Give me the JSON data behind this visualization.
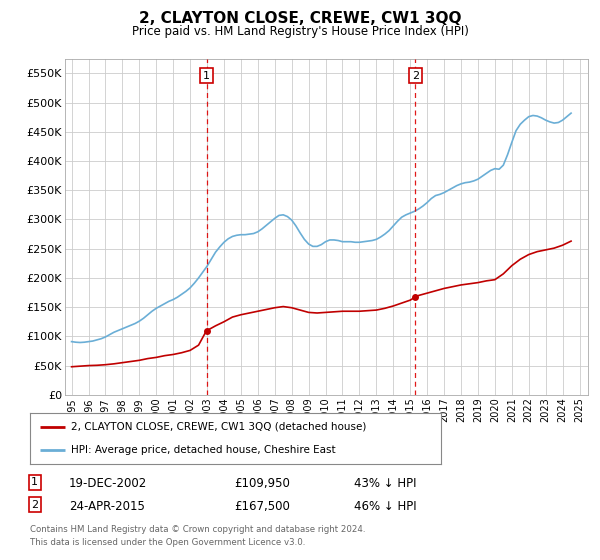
{
  "title": "2, CLAYTON CLOSE, CREWE, CW1 3QQ",
  "subtitle": "Price paid vs. HM Land Registry's House Price Index (HPI)",
  "ytick_values": [
    0,
    50000,
    100000,
    150000,
    200000,
    250000,
    300000,
    350000,
    400000,
    450000,
    500000,
    550000
  ],
  "ylim": [
    0,
    575000
  ],
  "xlim_start": 1994.6,
  "xlim_end": 2025.5,
  "hpi_color": "#6aaed6",
  "price_color": "#c00000",
  "transaction1_date": 2002.97,
  "transaction1_price": 109950,
  "transaction2_date": 2015.31,
  "transaction2_price": 167500,
  "marker_vline_color": "#dd0000",
  "marker_box_color": "#cc0000",
  "legend_label_red": "2, CLAYTON CLOSE, CREWE, CW1 3QQ (detached house)",
  "legend_label_blue": "HPI: Average price, detached house, Cheshire East",
  "transaction1_label": "19-DEC-2002",
  "transaction1_amount": "£109,950",
  "transaction1_pct": "43% ↓ HPI",
  "transaction2_label": "24-APR-2015",
  "transaction2_amount": "£167,500",
  "transaction2_pct": "46% ↓ HPI",
  "footer1": "Contains HM Land Registry data © Crown copyright and database right 2024.",
  "footer2": "This data is licensed under the Open Government Licence v3.0.",
  "background_color": "#ffffff",
  "grid_color": "#cccccc",
  "hpi_data_x": [
    1995.0,
    1995.25,
    1995.5,
    1995.75,
    1996.0,
    1996.25,
    1996.5,
    1996.75,
    1997.0,
    1997.25,
    1997.5,
    1997.75,
    1998.0,
    1998.25,
    1998.5,
    1998.75,
    1999.0,
    1999.25,
    1999.5,
    1999.75,
    2000.0,
    2000.25,
    2000.5,
    2000.75,
    2001.0,
    2001.25,
    2001.5,
    2001.75,
    2002.0,
    2002.25,
    2002.5,
    2002.75,
    2003.0,
    2003.25,
    2003.5,
    2003.75,
    2004.0,
    2004.25,
    2004.5,
    2004.75,
    2005.0,
    2005.25,
    2005.5,
    2005.75,
    2006.0,
    2006.25,
    2006.5,
    2006.75,
    2007.0,
    2007.25,
    2007.5,
    2007.75,
    2008.0,
    2008.25,
    2008.5,
    2008.75,
    2009.0,
    2009.25,
    2009.5,
    2009.75,
    2010.0,
    2010.25,
    2010.5,
    2010.75,
    2011.0,
    2011.25,
    2011.5,
    2011.75,
    2012.0,
    2012.25,
    2012.5,
    2012.75,
    2013.0,
    2013.25,
    2013.5,
    2013.75,
    2014.0,
    2014.25,
    2014.5,
    2014.75,
    2015.0,
    2015.25,
    2015.5,
    2015.75,
    2016.0,
    2016.25,
    2016.5,
    2016.75,
    2017.0,
    2017.25,
    2017.5,
    2017.75,
    2018.0,
    2018.25,
    2018.5,
    2018.75,
    2019.0,
    2019.25,
    2019.5,
    2019.75,
    2020.0,
    2020.25,
    2020.5,
    2020.75,
    2021.0,
    2021.25,
    2021.5,
    2021.75,
    2022.0,
    2022.25,
    2022.5,
    2022.75,
    2023.0,
    2023.25,
    2023.5,
    2023.75,
    2024.0,
    2024.25,
    2024.5
  ],
  "hpi_data_y": [
    91000,
    90000,
    89500,
    90000,
    91000,
    92000,
    94000,
    96000,
    99000,
    103000,
    107000,
    110000,
    113000,
    116000,
    119000,
    122000,
    126000,
    131000,
    137000,
    143000,
    148000,
    152000,
    156000,
    160000,
    163000,
    167000,
    172000,
    177000,
    183000,
    191000,
    200000,
    210000,
    220000,
    232000,
    244000,
    253000,
    261000,
    267000,
    271000,
    273000,
    274000,
    274000,
    275000,
    276000,
    279000,
    284000,
    290000,
    296000,
    302000,
    307000,
    308000,
    305000,
    299000,
    289000,
    277000,
    266000,
    258000,
    254000,
    254000,
    257000,
    262000,
    265000,
    265000,
    264000,
    262000,
    262000,
    262000,
    261000,
    261000,
    262000,
    263000,
    264000,
    266000,
    270000,
    275000,
    281000,
    289000,
    297000,
    304000,
    308000,
    311000,
    314000,
    318000,
    323000,
    329000,
    336000,
    341000,
    343000,
    346000,
    350000,
    354000,
    358000,
    361000,
    363000,
    364000,
    366000,
    369000,
    374000,
    379000,
    384000,
    387000,
    386000,
    393000,
    411000,
    432000,
    452000,
    463000,
    470000,
    476000,
    478000,
    477000,
    474000,
    470000,
    467000,
    465000,
    466000,
    470000,
    476000,
    482000
  ],
  "price_data_x": [
    1995.0,
    1995.5,
    1996.0,
    1996.5,
    1997.0,
    1997.5,
    1998.0,
    1998.5,
    1999.0,
    1999.5,
    2000.0,
    2000.5,
    2001.0,
    2001.5,
    2002.0,
    2002.5,
    2002.97,
    2003.0,
    2003.5,
    2004.0,
    2004.5,
    2005.0,
    2005.5,
    2006.0,
    2006.5,
    2007.0,
    2007.5,
    2008.0,
    2008.5,
    2009.0,
    2009.5,
    2010.0,
    2010.5,
    2011.0,
    2011.5,
    2012.0,
    2012.5,
    2013.0,
    2013.5,
    2014.0,
    2014.5,
    2015.0,
    2015.31,
    2015.5,
    2016.0,
    2016.5,
    2017.0,
    2017.5,
    2018.0,
    2018.5,
    2019.0,
    2019.5,
    2020.0,
    2020.5,
    2021.0,
    2021.5,
    2022.0,
    2022.5,
    2023.0,
    2023.5,
    2024.0,
    2024.5
  ],
  "price_data_y": [
    48000,
    49000,
    50000,
    50500,
    51500,
    53000,
    55000,
    57000,
    59000,
    62000,
    64000,
    67000,
    69000,
    72000,
    76000,
    85000,
    109950,
    110000,
    118000,
    125000,
    133000,
    137000,
    140000,
    143000,
    146000,
    149000,
    151000,
    149000,
    145000,
    141000,
    140000,
    141000,
    142000,
    143000,
    143000,
    143000,
    144000,
    145000,
    148000,
    152000,
    157000,
    162000,
    167500,
    170000,
    174000,
    178000,
    182000,
    185000,
    188000,
    190000,
    192000,
    195000,
    197000,
    207000,
    221000,
    232000,
    240000,
    245000,
    248000,
    251000,
    256000,
    263000
  ]
}
